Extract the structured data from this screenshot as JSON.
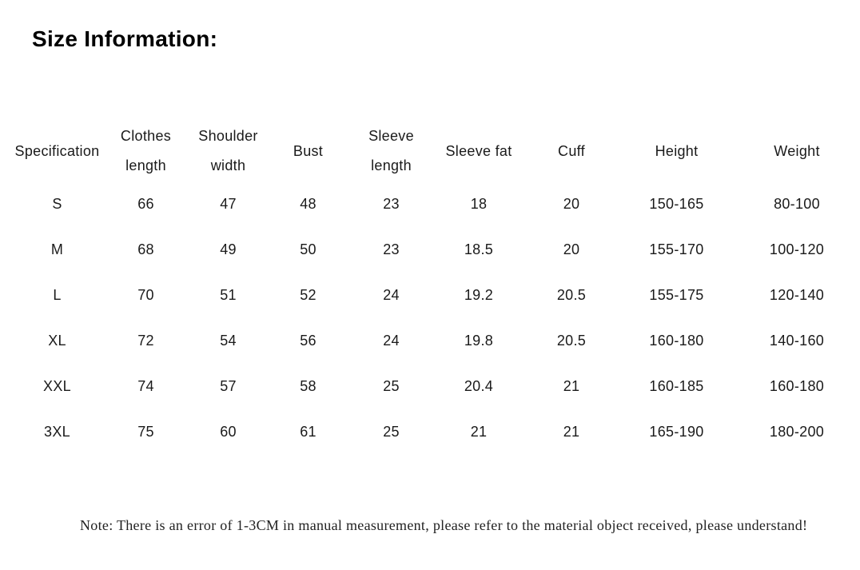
{
  "page": {
    "title": "Size Information:"
  },
  "table": {
    "columns": [
      {
        "key": "specification",
        "lines": [
          "Specification"
        ]
      },
      {
        "key": "clothes-length",
        "lines": [
          "Clothes",
          "length"
        ]
      },
      {
        "key": "shoulder-width",
        "lines": [
          "Shoulder",
          "width"
        ]
      },
      {
        "key": "bust",
        "lines": [
          "Bust"
        ]
      },
      {
        "key": "sleeve-length",
        "lines": [
          "Sleeve",
          "length"
        ]
      },
      {
        "key": "sleeve-fat",
        "lines": [
          "Sleeve fat"
        ]
      },
      {
        "key": "cuff",
        "lines": [
          "Cuff"
        ]
      },
      {
        "key": "height",
        "lines": [
          "Height"
        ]
      },
      {
        "key": "weight",
        "lines": [
          "Weight"
        ]
      }
    ],
    "rows": [
      [
        "S",
        "66",
        "47",
        "48",
        "23",
        "18",
        "20",
        "150-165",
        "80-100"
      ],
      [
        "M",
        "68",
        "49",
        "50",
        "23",
        "18.5",
        "20",
        "155-170",
        "100-120"
      ],
      [
        "L",
        "70",
        "51",
        "52",
        "24",
        "19.2",
        "20.5",
        "155-175",
        "120-140"
      ],
      [
        "XL",
        "72",
        "54",
        "56",
        "24",
        "19.8",
        "20.5",
        "160-180",
        "140-160"
      ],
      [
        "XXL",
        "74",
        "57",
        "58",
        "25",
        "20.4",
        "21",
        "160-185",
        "160-180"
      ],
      [
        "3XL",
        "75",
        "60",
        "61",
        "25",
        "21",
        "21",
        "165-190",
        "180-200"
      ]
    ]
  },
  "note": {
    "text": "Note: There is an error of 1-3CM in manual measurement, please refer to the material object received, please understand!"
  },
  "colors": {
    "background": "#ffffff",
    "title_text": "#000000",
    "table_text": "#1a1a1a",
    "note_text": "#222222"
  }
}
